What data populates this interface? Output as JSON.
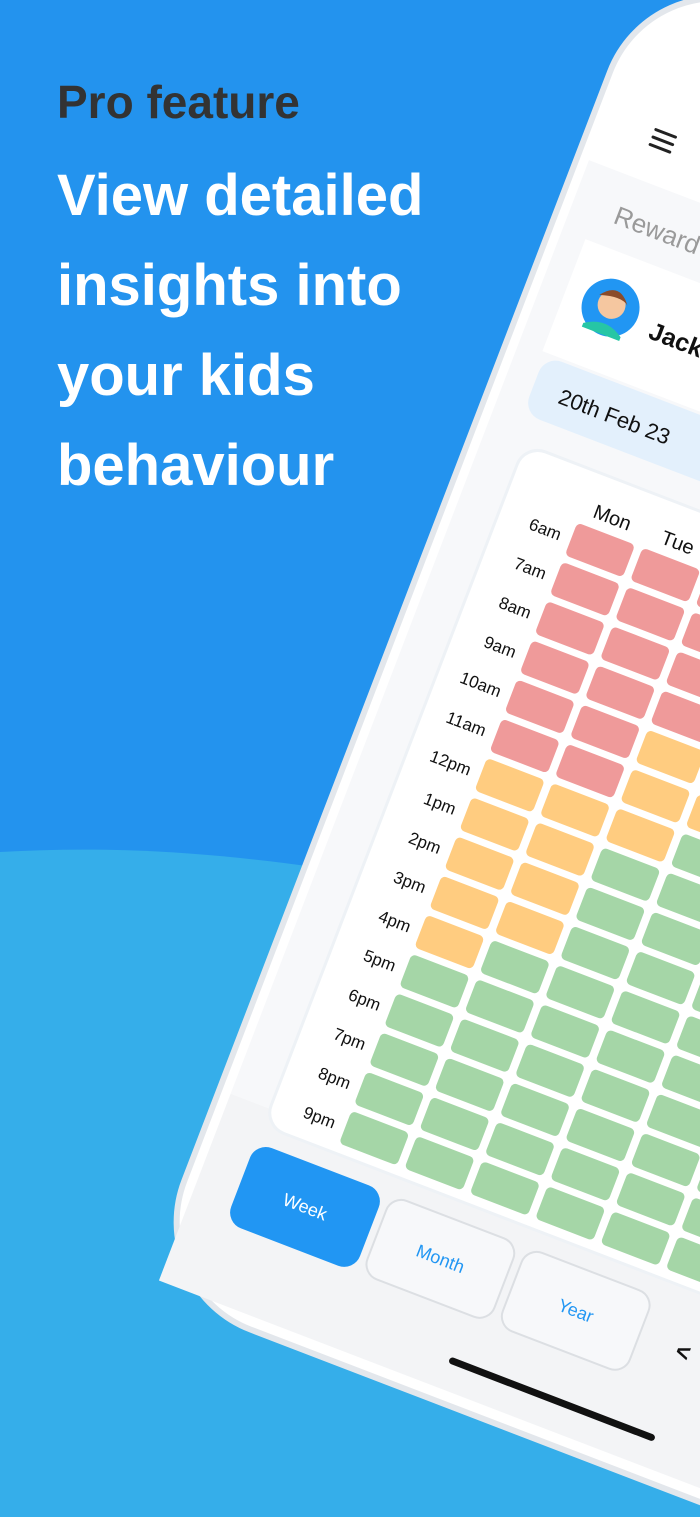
{
  "header": {
    "kicker": "Pro feature",
    "headline": [
      "View detailed",
      "insights into",
      "your kids",
      "behaviour"
    ]
  },
  "phone": {
    "tab": "Reward",
    "child": "Jack",
    "date": "20th Feb 23",
    "days": [
      "Mon",
      "Tue"
    ],
    "hours": [
      "6am",
      "7am",
      "8am",
      "9am",
      "10am",
      "11am",
      "12pm",
      "1pm",
      "2pm",
      "3pm",
      "4pm",
      "5pm",
      "6pm",
      "7pm",
      "8pm",
      "9pm"
    ],
    "heatmap": [
      [
        "#ef9a9a",
        "#ef9a9a",
        "#ef9a9a",
        "#ef9a9a",
        "#ef9a9a",
        "#ef9a9a"
      ],
      [
        "#ef9a9a",
        "#ef9a9a",
        "#ef9a9a",
        "#ef9a9a",
        "#ef9a9a",
        "#ef9a9a"
      ],
      [
        "#ef9a9a",
        "#ef9a9a",
        "#ef9a9a",
        "#ef9a9a",
        "#ef9a9a",
        "#ef9a9a"
      ],
      [
        "#ef9a9a",
        "#ef9a9a",
        "#ef9a9a",
        "#ef9a9a",
        "#ef9a9a",
        "#ef9a9a"
      ],
      [
        "#ef9a9a",
        "#ef9a9a",
        "#ffcc80",
        "#ffcc80",
        "#ffcc80",
        "#ffcc80"
      ],
      [
        "#ef9a9a",
        "#ef9a9a",
        "#ffcc80",
        "#ffcc80",
        "#ffcc80",
        "#ffcc80"
      ],
      [
        "#ffcc80",
        "#ffcc80",
        "#ffcc80",
        "#a5d6a7",
        "#a5d6a7",
        "#ffcc80"
      ],
      [
        "#ffcc80",
        "#ffcc80",
        "#a5d6a7",
        "#a5d6a7",
        "#a5d6a7",
        "#a5d6a7"
      ],
      [
        "#ffcc80",
        "#ffcc80",
        "#a5d6a7",
        "#a5d6a7",
        "#a5d6a7",
        "#a5d6a7"
      ],
      [
        "#ffcc80",
        "#ffcc80",
        "#a5d6a7",
        "#a5d6a7",
        "#a5d6a7",
        "#a5d6a7"
      ],
      [
        "#ffcc80",
        "#a5d6a7",
        "#a5d6a7",
        "#a5d6a7",
        "#a5d6a7",
        "#a5d6a7"
      ],
      [
        "#a5d6a7",
        "#a5d6a7",
        "#a5d6a7",
        "#a5d6a7",
        "#a5d6a7",
        "#a5d6a7"
      ],
      [
        "#a5d6a7",
        "#a5d6a7",
        "#a5d6a7",
        "#a5d6a7",
        "#a5d6a7",
        "#a5d6a7"
      ],
      [
        "#a5d6a7",
        "#a5d6a7",
        "#a5d6a7",
        "#a5d6a7",
        "#a5d6a7",
        "#a5d6a7"
      ],
      [
        "#a5d6a7",
        "#a5d6a7",
        "#a5d6a7",
        "#a5d6a7",
        "#a5d6a7",
        "#a5d6a7"
      ],
      [
        "#a5d6a7",
        "#a5d6a7",
        "#a5d6a7",
        "#a5d6a7",
        "#a5d6a7",
        "#a5d6a7"
      ]
    ],
    "periods": [
      "Week",
      "Month",
      "Year"
    ],
    "nav_prev": "<"
  }
}
